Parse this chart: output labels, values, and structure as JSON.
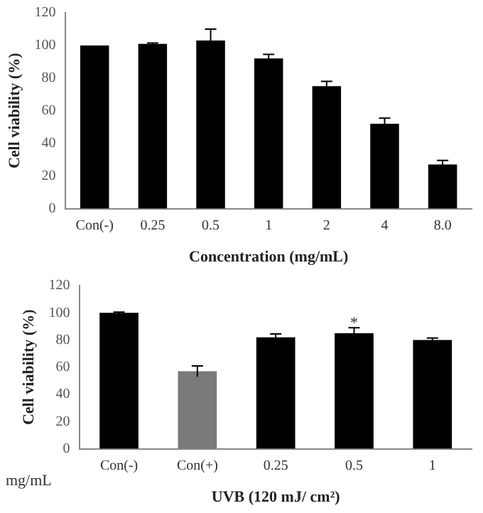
{
  "chart_data": [
    {
      "type": "bar",
      "xlabel": "Concentration (mg/mL)",
      "ylabel": "Cell viability (%)",
      "categories": [
        "Con(-)",
        "0.25",
        "0.5",
        "1",
        "2",
        "4",
        "8.0"
      ],
      "values": [
        100,
        101,
        103,
        92,
        75,
        52,
        27
      ],
      "errors": [
        null,
        0.5,
        7,
        2.5,
        3,
        3.5,
        2.5
      ],
      "color": "#000000",
      "ylim": [
        0,
        120
      ],
      "yticks": [
        0,
        20,
        40,
        60,
        80,
        100,
        120
      ],
      "grid": false,
      "legend": false
    },
    {
      "type": "bar",
      "xlabel": "UVB (120 mJ/ cm²)",
      "ylabel": "Cell viability (%)",
      "categories": [
        "Con(-)",
        "Con(+)",
        "0.25",
        "0.5",
        "1"
      ],
      "values": [
        100,
        57,
        82,
        85,
        80
      ],
      "errors": [
        0.5,
        4,
        2.5,
        4,
        1.5
      ],
      "colors": [
        "#000000",
        "#7a7a7a",
        "#000000",
        "#000000",
        "#000000"
      ],
      "ylim": [
        0,
        120
      ],
      "yticks": [
        0,
        20,
        40,
        60,
        80,
        100,
        120
      ],
      "grid": false,
      "legend": false,
      "annotations": [
        {
          "text": "*",
          "x": "0.5",
          "y": 92
        },
        "mg/mL"
      ]
    }
  ]
}
